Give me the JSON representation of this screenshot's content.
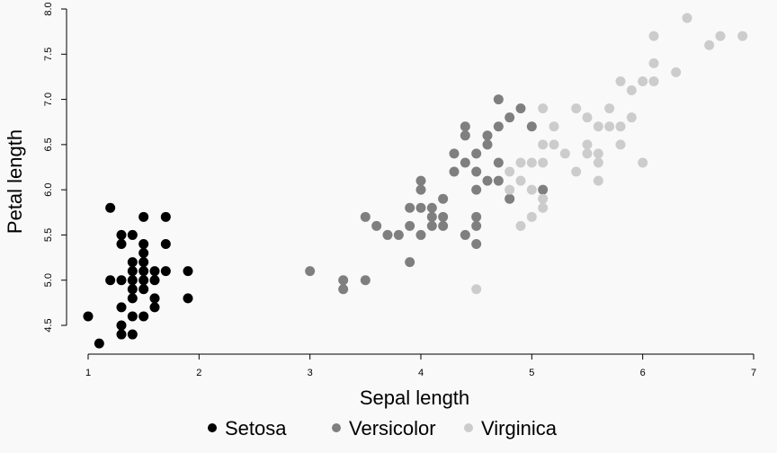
{
  "chart_data": {
    "type": "scatter",
    "xlabel": "Sepal length",
    "ylabel": "Petal length",
    "xlim": [
      0.8,
      7.2
    ],
    "ylim": [
      4.2,
      8.0
    ],
    "x_ticks": [
      1,
      2,
      3,
      4,
      5,
      6,
      7
    ],
    "y_ticks": [
      4.5,
      5.0,
      5.5,
      6.0,
      6.5,
      7.0,
      7.5,
      8.0
    ],
    "x_tick_labels": [
      "1",
      "2",
      "3",
      "4",
      "5",
      "6",
      "7"
    ],
    "y_tick_labels": [
      "4.5",
      "5.0",
      "5.5",
      "6.0",
      "6.5",
      "7.0",
      "7.5",
      "8.0"
    ],
    "legend_position": "bottom",
    "grid": false,
    "series": [
      {
        "name": "Setosa",
        "color": "#000000",
        "points": [
          [
            1.0,
            4.6
          ],
          [
            1.1,
            4.3
          ],
          [
            1.2,
            5.8
          ],
          [
            1.2,
            5.0
          ],
          [
            1.3,
            5.5
          ],
          [
            1.3,
            5.4
          ],
          [
            1.3,
            5.0
          ],
          [
            1.3,
            4.7
          ],
          [
            1.3,
            4.5
          ],
          [
            1.3,
            4.4
          ],
          [
            1.4,
            5.5
          ],
          [
            1.4,
            5.2
          ],
          [
            1.4,
            5.1
          ],
          [
            1.4,
            5.0
          ],
          [
            1.4,
            4.9
          ],
          [
            1.4,
            4.8
          ],
          [
            1.4,
            4.6
          ],
          [
            1.4,
            4.4
          ],
          [
            1.5,
            5.7
          ],
          [
            1.5,
            5.4
          ],
          [
            1.5,
            5.3
          ],
          [
            1.5,
            5.2
          ],
          [
            1.5,
            5.1
          ],
          [
            1.5,
            5.0
          ],
          [
            1.5,
            4.9
          ],
          [
            1.5,
            4.6
          ],
          [
            1.6,
            5.1
          ],
          [
            1.6,
            5.0
          ],
          [
            1.6,
            4.8
          ],
          [
            1.6,
            4.7
          ],
          [
            1.7,
            5.7
          ],
          [
            1.7,
            5.4
          ],
          [
            1.7,
            5.1
          ],
          [
            1.9,
            5.1
          ],
          [
            1.9,
            4.8
          ]
        ]
      },
      {
        "name": "Versicolor",
        "color": "#7f7f7f",
        "points": [
          [
            3.0,
            5.1
          ],
          [
            3.3,
            5.0
          ],
          [
            3.3,
            4.9
          ],
          [
            3.5,
            5.7
          ],
          [
            3.5,
            5.0
          ],
          [
            3.6,
            5.6
          ],
          [
            3.7,
            5.5
          ],
          [
            3.8,
            5.5
          ],
          [
            3.9,
            5.8
          ],
          [
            3.9,
            5.6
          ],
          [
            3.9,
            5.2
          ],
          [
            4.0,
            6.1
          ],
          [
            4.0,
            6.0
          ],
          [
            4.0,
            5.8
          ],
          [
            4.0,
            5.5
          ],
          [
            4.1,
            5.8
          ],
          [
            4.1,
            5.7
          ],
          [
            4.1,
            5.6
          ],
          [
            4.2,
            5.9
          ],
          [
            4.2,
            5.7
          ],
          [
            4.2,
            5.6
          ],
          [
            4.3,
            6.4
          ],
          [
            4.3,
            6.2
          ],
          [
            4.4,
            6.7
          ],
          [
            4.4,
            6.6
          ],
          [
            4.4,
            6.3
          ],
          [
            4.4,
            5.5
          ],
          [
            4.5,
            6.4
          ],
          [
            4.5,
            6.2
          ],
          [
            4.5,
            6.0
          ],
          [
            4.5,
            5.7
          ],
          [
            4.5,
            5.6
          ],
          [
            4.5,
            5.4
          ],
          [
            4.6,
            6.6
          ],
          [
            4.6,
            6.5
          ],
          [
            4.6,
            6.1
          ],
          [
            4.7,
            7.0
          ],
          [
            4.7,
            6.7
          ],
          [
            4.7,
            6.3
          ],
          [
            4.7,
            6.1
          ],
          [
            4.8,
            6.8
          ],
          [
            4.8,
            5.9
          ],
          [
            4.9,
            6.9
          ],
          [
            5.0,
            6.7
          ],
          [
            5.1,
            6.0
          ]
        ]
      },
      {
        "name": "Virginica",
        "color": "#cccccc",
        "points": [
          [
            4.5,
            4.9
          ],
          [
            4.8,
            6.2
          ],
          [
            4.8,
            6.0
          ],
          [
            4.9,
            6.3
          ],
          [
            4.9,
            6.1
          ],
          [
            4.9,
            5.6
          ],
          [
            5.0,
            6.3
          ],
          [
            5.0,
            6.0
          ],
          [
            5.0,
            5.7
          ],
          [
            5.1,
            6.9
          ],
          [
            5.1,
            6.5
          ],
          [
            5.1,
            6.3
          ],
          [
            5.1,
            5.9
          ],
          [
            5.1,
            5.8
          ],
          [
            5.2,
            6.7
          ],
          [
            5.2,
            6.5
          ],
          [
            5.3,
            6.4
          ],
          [
            5.4,
            6.9
          ],
          [
            5.4,
            6.2
          ],
          [
            5.5,
            6.8
          ],
          [
            5.5,
            6.5
          ],
          [
            5.5,
            6.4
          ],
          [
            5.6,
            6.7
          ],
          [
            5.6,
            6.4
          ],
          [
            5.6,
            6.3
          ],
          [
            5.6,
            6.1
          ],
          [
            5.7,
            6.9
          ],
          [
            5.7,
            6.7
          ],
          [
            5.8,
            7.2
          ],
          [
            5.8,
            6.7
          ],
          [
            5.8,
            6.5
          ],
          [
            5.9,
            7.1
          ],
          [
            5.9,
            6.8
          ],
          [
            6.0,
            7.2
          ],
          [
            6.0,
            6.3
          ],
          [
            6.1,
            7.7
          ],
          [
            6.1,
            7.4
          ],
          [
            6.1,
            7.2
          ],
          [
            6.3,
            7.3
          ],
          [
            6.4,
            7.9
          ],
          [
            6.6,
            7.6
          ],
          [
            6.7,
            7.7
          ],
          [
            6.9,
            7.7
          ]
        ]
      }
    ]
  }
}
